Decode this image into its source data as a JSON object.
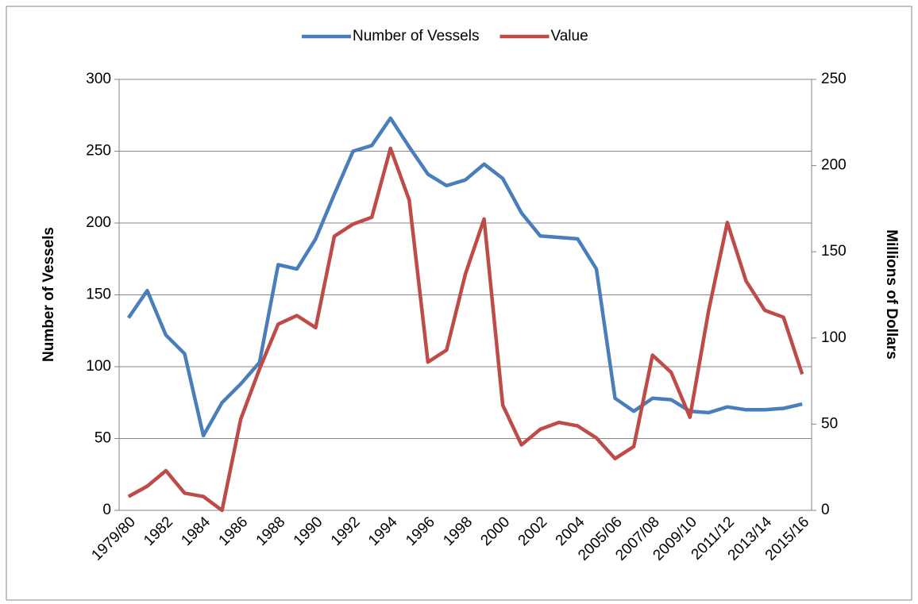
{
  "chart_data": {
    "type": "line",
    "categories": [
      "1979/80",
      null,
      "1982",
      null,
      "1984",
      null,
      "1986",
      null,
      "1988",
      null,
      "1990",
      null,
      "1992",
      null,
      "1994",
      null,
      "1996",
      null,
      "1998",
      null,
      "2000",
      null,
      "2002",
      null,
      "2004",
      null,
      "2005/06",
      null,
      "2007/08",
      null,
      "2009/10",
      null,
      "2011/12",
      null,
      "2013/14",
      null,
      "2015/16"
    ],
    "series": [
      {
        "name": "Number of Vessels",
        "color": "#4a7ebb",
        "values": [
          134,
          153,
          122,
          109,
          52,
          75,
          88,
          103,
          171,
          168,
          189,
          220,
          250,
          254,
          273,
          253,
          234,
          226,
          230,
          241,
          231,
          207,
          191,
          190,
          189,
          168,
          78,
          69,
          78,
          77,
          69,
          68,
          72,
          70,
          70,
          71,
          74
        ]
      },
      {
        "name": "Value",
        "color": "#be4b48",
        "axis": "y2",
        "values": [
          8,
          14,
          23,
          10,
          8,
          0,
          53,
          82,
          108,
          113,
          106,
          159,
          166,
          170,
          210,
          180,
          86,
          93,
          137,
          169,
          61,
          38,
          47,
          51,
          49,
          42,
          30,
          37,
          90,
          80,
          54,
          116,
          167,
          133,
          116,
          112,
          79
        ]
      }
    ],
    "y_label": "Number of Vessels",
    "y2_label": "Millions of Dollars",
    "ylim": [
      0,
      300
    ],
    "yticks": [
      0,
      50,
      100,
      150,
      200,
      250,
      300
    ],
    "y2lim": [
      0,
      250
    ],
    "y2ticks": [
      0,
      50,
      100,
      150,
      200,
      250
    ],
    "grid": true,
    "legend": "top"
  }
}
